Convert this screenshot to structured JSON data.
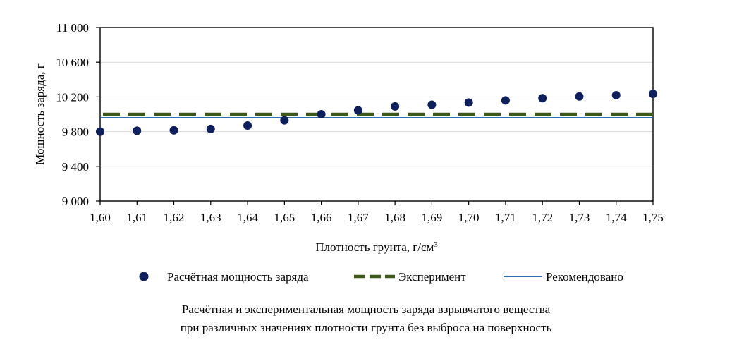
{
  "chart_data": {
    "type": "scatter",
    "x": [
      "1,60",
      "1,61",
      "1,62",
      "1,63",
      "1,64",
      "1,65",
      "1,66",
      "1,67",
      "1,68",
      "1,69",
      "1,70",
      "1,71",
      "1,72",
      "1,73",
      "1,74",
      "1,75"
    ],
    "series": [
      {
        "name": "Расчётная мощность заряда",
        "kind": "scatter",
        "color": "#0d1f5c",
        "values": [
          9800,
          9810,
          9815,
          9830,
          9870,
          9930,
          10000,
          10045,
          10090,
          10110,
          10135,
          10160,
          10185,
          10205,
          10220,
          10235
        ]
      },
      {
        "name": "Эксперимент",
        "kind": "dashed-line",
        "color": "#3b5a1c",
        "value": 10000
      },
      {
        "name": "Рекомендовано",
        "kind": "line",
        "color": "#2e6db4",
        "value": 9960
      }
    ],
    "y_ticks": [
      "9 000",
      "9 400",
      "9 800",
      "10 200",
      "10 600",
      "11 000"
    ],
    "ylim": [
      9000,
      11000
    ],
    "xlabel": "Плотность грунта, г/см",
    "xlabel_sup": "3",
    "ylabel": "Мощность заряда, г",
    "legend_position": "bottom",
    "grid": "horizontal",
    "caption_line1": "Расчётная и экспериментальная мощность заряда взрывчатого вещества",
    "caption_line2": "при различных значениях плотности грунта без выброса на поверхность"
  }
}
